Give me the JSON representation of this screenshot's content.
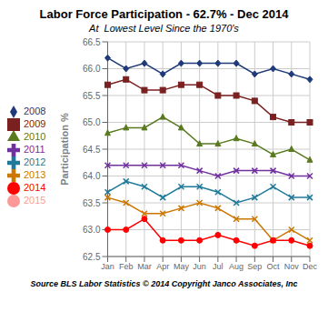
{
  "chart_data": {
    "type": "line",
    "title": "Labor Force Participation - 62.7% - Dec 2014",
    "subtitle": "At  Lowest Level Since the 1970's",
    "y_label": "Participation %",
    "source": "Source BLS Labor Statistics © 2014 Copyright Janco Associates, Inc",
    "categories": [
      "Jan",
      "Feb",
      "Mar",
      "Apr",
      "May",
      "Jun",
      "Jul",
      "Aug",
      "Sep",
      "Oct",
      "Nov",
      "Dec"
    ],
    "series": [
      {
        "name": "2008",
        "color": "#1F3A7A",
        "marker": "diamond",
        "line_style": "solid",
        "values": [
          66.2,
          66.0,
          66.1,
          65.9,
          66.1,
          66.1,
          66.1,
          66.1,
          65.9,
          66.0,
          65.9,
          65.8
        ]
      },
      {
        "name": "2009",
        "color": "#7B2020",
        "marker": "square",
        "line_style": "solid",
        "values": [
          65.7,
          65.8,
          65.6,
          65.6,
          65.7,
          65.7,
          65.5,
          65.5,
          65.4,
          65.1,
          65.0,
          65.0
        ]
      },
      {
        "name": "2010",
        "color": "#5A7A20",
        "marker": "triangle",
        "line_style": "solid",
        "values": [
          64.8,
          64.9,
          64.9,
          65.1,
          64.9,
          64.6,
          64.6,
          64.7,
          64.6,
          64.4,
          64.5,
          64.3
        ]
      },
      {
        "name": "2011",
        "color": "#7030A0",
        "marker": "x",
        "line_style": "solid",
        "values": [
          64.2,
          64.2,
          64.2,
          64.2,
          64.2,
          64.1,
          64.0,
          64.1,
          64.1,
          64.1,
          64.0,
          64.0
        ]
      },
      {
        "name": "2012",
        "color": "#1F7A9A",
        "marker": "x",
        "line_style": "solid",
        "values": [
          63.7,
          63.9,
          63.8,
          63.6,
          63.8,
          63.8,
          63.7,
          63.5,
          63.6,
          63.8,
          63.6,
          63.6
        ]
      },
      {
        "name": "2013",
        "color": "#CC7700",
        "marker": "x",
        "line_style": "solid",
        "values": [
          63.6,
          63.5,
          63.3,
          63.3,
          63.4,
          63.5,
          63.4,
          63.2,
          63.2,
          62.8,
          63.0,
          62.8
        ]
      },
      {
        "name": "2014",
        "color": "#FF0000",
        "marker": "circle",
        "line_style": "solid",
        "values": [
          63.0,
          63.0,
          63.2,
          62.8,
          62.8,
          62.8,
          62.9,
          62.8,
          62.7,
          62.8,
          62.8,
          62.7
        ]
      },
      {
        "name": "2015",
        "color": "#FF9999",
        "marker": "point",
        "line_style": "dotted",
        "values": [
          null,
          null,
          null,
          null,
          null,
          null,
          null,
          null,
          null,
          null,
          null,
          null
        ]
      }
    ],
    "ylim": [
      62.5,
      66.5
    ],
    "yticks": [
      62.5,
      {
        "value": 63,
        "label": "63.0"
      },
      63.5,
      {
        "value": 64,
        "label": "64.0"
      },
      64.5,
      {
        "value": 65,
        "label": "65.0"
      },
      65.5,
      {
        "value": 66,
        "label": "66.0"
      },
      66.5
    ],
    "grid": true,
    "legend": "left"
  }
}
